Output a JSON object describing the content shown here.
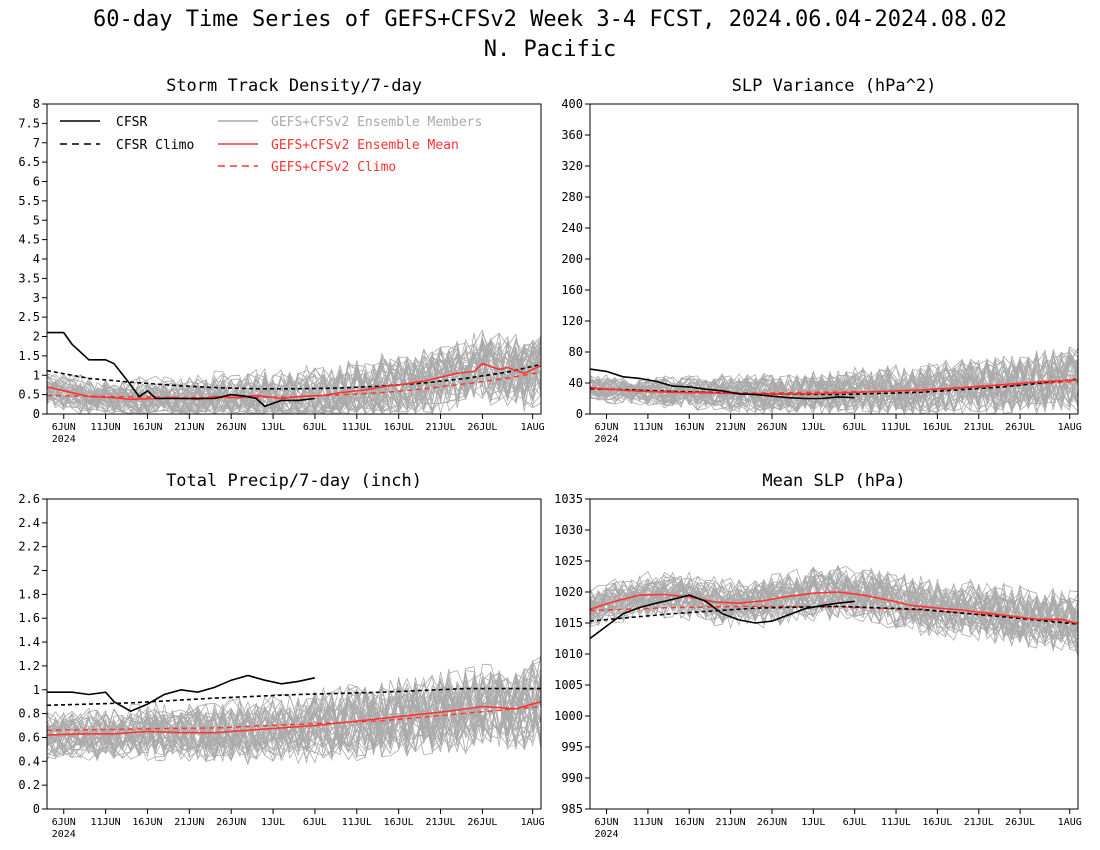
{
  "title": {
    "line1": "60-day Time Series of GEFS+CFSv2 Week 3-4 FCST, 2024.06.04-2024.08.02",
    "line2": "N. Pacific"
  },
  "colors": {
    "observed": "#000000",
    "members": "#aaaaaa",
    "mean": "#ff3333",
    "clim_model": "#ff3333"
  },
  "legend": {
    "cfsr": "CFSR",
    "cfsr_climo": "CFSR Climo",
    "members": "GEFS+CFSv2 Ensemble Members",
    "mean": "GEFS+CFSv2 Ensemble Mean",
    "model_climo": "GEFS+CFSv2 Climo"
  },
  "x_axis": {
    "ticks": [
      "6JUN",
      "11JUN",
      "16JUN",
      "21JUN",
      "26JUN",
      "1JUL",
      "6JUL",
      "11JUL",
      "16JUL",
      "21JUL",
      "26JUL",
      "1AUG"
    ],
    "tick_days": [
      2,
      7,
      12,
      17,
      22,
      27,
      32,
      37,
      42,
      47,
      52,
      58
    ],
    "year_label": "2024",
    "range_days": [
      0,
      59
    ]
  },
  "chart_data": [
    {
      "type": "line",
      "title": "Storm Track Density/7-day",
      "ylim": [
        0,
        8
      ],
      "yticks": [
        0,
        0.5,
        1,
        1.5,
        2,
        2.5,
        3,
        3.5,
        4,
        4.5,
        5,
        5.5,
        6,
        6.5,
        7,
        7.5,
        8
      ],
      "ytick_labels": [
        "0",
        "0.5",
        "1",
        "1.5",
        "2",
        "2.5",
        "3",
        "3.5",
        "4",
        "4.5",
        "5",
        "5.5",
        "6",
        "6.5",
        "7",
        "7.5",
        "8"
      ],
      "members": {
        "count": 40,
        "spread_min": 0.35,
        "spread_max": 0.9
      },
      "series": [
        {
          "name": "CFSR",
          "x": [
            0,
            2,
            3,
            5,
            7,
            8,
            10,
            11,
            12,
            13,
            15,
            17,
            20,
            22,
            24,
            25,
            26,
            28,
            30,
            32
          ],
          "y": [
            2.1,
            2.1,
            1.8,
            1.4,
            1.4,
            1.3,
            0.75,
            0.45,
            0.6,
            0.4,
            0.4,
            0.4,
            0.4,
            0.5,
            0.45,
            0.4,
            0.2,
            0.35,
            0.35,
            0.4
          ]
        },
        {
          "name": "CFSR Climo",
          "x": [
            0,
            5,
            10,
            15,
            20,
            25,
            30,
            35,
            40,
            45,
            50,
            55,
            59
          ],
          "y": [
            1.12,
            0.92,
            0.82,
            0.74,
            0.68,
            0.65,
            0.65,
            0.67,
            0.72,
            0.8,
            0.92,
            1.08,
            1.28
          ]
        },
        {
          "name": "GEFS+CFSv2 Ensemble Mean",
          "x": [
            0,
            3,
            5,
            8,
            10,
            13,
            15,
            18,
            20,
            23,
            25,
            28,
            30,
            33,
            35,
            38,
            40,
            43,
            45,
            47,
            49,
            51,
            52,
            54,
            55,
            57,
            59
          ],
          "y": [
            0.7,
            0.55,
            0.45,
            0.42,
            0.38,
            0.4,
            0.42,
            0.38,
            0.45,
            0.42,
            0.48,
            0.4,
            0.45,
            0.48,
            0.55,
            0.62,
            0.7,
            0.78,
            0.85,
            0.95,
            1.05,
            1.1,
            1.3,
            1.15,
            1.2,
            1.05,
            1.25
          ]
        },
        {
          "name": "GEFS+CFSv2 Climo",
          "x": [
            0,
            10,
            20,
            30,
            40,
            45,
            50,
            55,
            59
          ],
          "y": [
            0.48,
            0.44,
            0.42,
            0.44,
            0.55,
            0.65,
            0.78,
            0.93,
            1.08
          ]
        }
      ]
    },
    {
      "type": "line",
      "title": "SLP Variance (hPa^2)",
      "ylim": [
        0,
        400
      ],
      "yticks": [
        0,
        40,
        80,
        120,
        160,
        200,
        240,
        280,
        320,
        360,
        400
      ],
      "ytick_labels": [
        "0",
        "40",
        "80",
        "120",
        "160",
        "200",
        "240",
        "280",
        "320",
        "360",
        "400"
      ],
      "members": {
        "count": 40,
        "spread_min": 12,
        "spread_max": 40
      },
      "series": [
        {
          "name": "CFSR",
          "x": [
            0,
            2,
            4,
            6,
            8,
            10,
            12,
            14,
            16,
            18,
            20,
            22,
            24,
            26,
            28,
            30,
            32
          ],
          "y": [
            58,
            55,
            48,
            46,
            42,
            36,
            35,
            32,
            30,
            26,
            25,
            23,
            21,
            20,
            20,
            22,
            21
          ]
        },
        {
          "name": "CFSR Climo",
          "x": [
            0,
            10,
            20,
            30,
            40,
            50,
            59
          ],
          "y": [
            33,
            29,
            26,
            25,
            28,
            35,
            45
          ]
        },
        {
          "name": "GEFS+CFSv2 Ensemble Mean",
          "x": [
            0,
            5,
            10,
            15,
            20,
            25,
            30,
            35,
            40,
            45,
            50,
            55,
            59
          ],
          "y": [
            34,
            30,
            28,
            27,
            26,
            26,
            27,
            29,
            31,
            34,
            38,
            42,
            44
          ]
        },
        {
          "name": "GEFS+CFSv2 Climo",
          "x": [
            0,
            20,
            40,
            59
          ],
          "y": [
            32,
            27,
            30,
            42
          ]
        }
      ]
    },
    {
      "type": "line",
      "title": "Total Precip/7-day (inch)",
      "ylim": [
        0,
        2.6
      ],
      "yticks": [
        0,
        0.2,
        0.4,
        0.6,
        0.8,
        1,
        1.2,
        1.4,
        1.6,
        1.8,
        2,
        2.2,
        2.4,
        2.6
      ],
      "ytick_labels": [
        "0",
        "0.2",
        "0.4",
        "0.6",
        "0.8",
        "1",
        "1.2",
        "1.4",
        "1.6",
        "1.8",
        "2",
        "2.2",
        "2.4",
        "2.6"
      ],
      "members": {
        "count": 40,
        "spread_min": 0.15,
        "spread_max": 0.35
      },
      "series": [
        {
          "name": "CFSR",
          "x": [
            0,
            3,
            5,
            7,
            8,
            10,
            12,
            14,
            16,
            18,
            20,
            22,
            24,
            26,
            28,
            30,
            32
          ],
          "y": [
            0.98,
            0.98,
            0.96,
            0.98,
            0.9,
            0.82,
            0.88,
            0.96,
            1.0,
            0.98,
            1.02,
            1.08,
            1.12,
            1.08,
            1.05,
            1.07,
            1.1
          ]
        },
        {
          "name": "CFSR Climo",
          "x": [
            0,
            10,
            20,
            30,
            40,
            50,
            59
          ],
          "y": [
            0.87,
            0.89,
            0.93,
            0.96,
            0.98,
            1.01,
            1.01
          ]
        },
        {
          "name": "GEFS+CFSv2 Ensemble Mean",
          "x": [
            0,
            4,
            8,
            12,
            16,
            20,
            24,
            28,
            32,
            36,
            40,
            44,
            48,
            52,
            56,
            59
          ],
          "y": [
            0.62,
            0.63,
            0.63,
            0.65,
            0.64,
            0.64,
            0.66,
            0.68,
            0.7,
            0.73,
            0.76,
            0.79,
            0.82,
            0.86,
            0.84,
            0.9
          ]
        },
        {
          "name": "GEFS+CFSv2 Climo",
          "x": [
            0,
            20,
            40,
            59
          ],
          "y": [
            0.66,
            0.68,
            0.74,
            0.86
          ]
        }
      ]
    },
    {
      "type": "line",
      "title": "Mean SLP (hPa)",
      "ylim": [
        985,
        1035
      ],
      "yticks": [
        985,
        990,
        995,
        1000,
        1005,
        1010,
        1015,
        1020,
        1025,
        1030,
        1035
      ],
      "ytick_labels": [
        "985",
        "990",
        "995",
        "1000",
        "1005",
        "1010",
        "1015",
        "1020",
        "1025",
        "1030",
        "1035"
      ],
      "members": {
        "count": 40,
        "spread_min": 2.5,
        "spread_max": 4.5
      },
      "series": [
        {
          "name": "CFSR",
          "x": [
            0,
            2,
            4,
            6,
            8,
            10,
            12,
            14,
            16,
            18,
            20,
            22,
            24,
            26,
            28,
            30,
            32
          ],
          "y": [
            1012.5,
            1014.5,
            1016.5,
            1017.5,
            1018.2,
            1018.8,
            1019.5,
            1018.5,
            1016.5,
            1015.5,
            1015,
            1015.3,
            1016.3,
            1017.3,
            1017.8,
            1018.2,
            1018.5
          ]
        },
        {
          "name": "CFSR Climo",
          "x": [
            0,
            10,
            20,
            30,
            40,
            50,
            59
          ],
          "y": [
            1015.3,
            1016.5,
            1017.4,
            1017.7,
            1017.2,
            1016,
            1014.8
          ]
        },
        {
          "name": "GEFS+CFSv2 Ensemble Mean",
          "x": [
            0,
            3,
            6,
            9,
            12,
            15,
            18,
            21,
            24,
            27,
            30,
            33,
            36,
            39,
            42,
            45,
            48,
            51,
            54,
            57,
            59
          ],
          "y": [
            1017.2,
            1018.5,
            1019.5,
            1019.6,
            1019.2,
            1018.4,
            1018.2,
            1018.6,
            1019.3,
            1019.8,
            1020,
            1019.5,
            1018.7,
            1017.8,
            1017.4,
            1017.1,
            1016.6,
            1016.1,
            1015.6,
            1015.6,
            1014.9
          ]
        },
        {
          "name": "GEFS+CFSv2 Climo",
          "x": [
            0,
            10,
            20,
            30,
            40,
            50,
            59
          ],
          "y": [
            1017.0,
            1017.5,
            1017.7,
            1017.6,
            1017.1,
            1016.2,
            1015.0
          ]
        }
      ]
    }
  ]
}
